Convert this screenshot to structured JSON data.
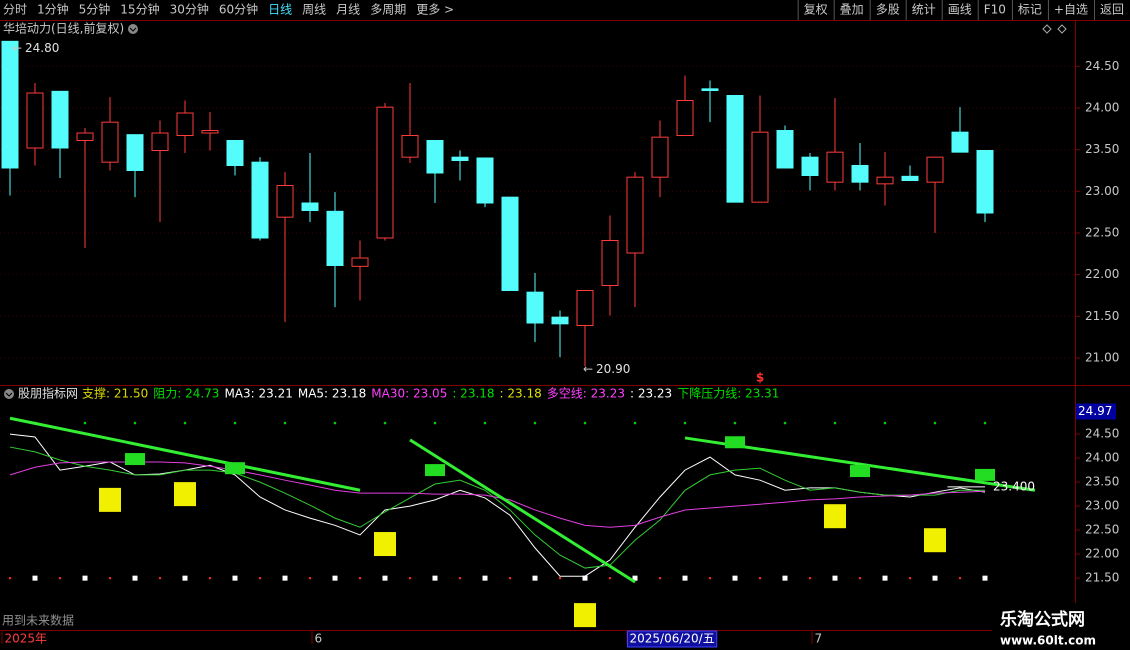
{
  "toolbar": {
    "left": [
      "分时",
      "1分钟",
      "5分钟",
      "15分钟",
      "30分钟",
      "60分钟",
      "日线",
      "周线",
      "月线",
      "多周期",
      "更多 >"
    ],
    "active": "日线",
    "right": [
      "复权",
      "叠加",
      "多股",
      "统计",
      "画线",
      "F10",
      "标记",
      "+自选",
      "返回"
    ]
  },
  "chart_data": [
    {
      "type": "candlestick",
      "title": "华培动力(日线,前复权)",
      "open": [
        24.8,
        23.52,
        24.2,
        23.61,
        23.35,
        23.68,
        23.49,
        23.67,
        23.7,
        23.61,
        23.35,
        22.69,
        22.86,
        22.76,
        22.1,
        22.44,
        23.41,
        23.61,
        23.41,
        23.4,
        22.93,
        21.79,
        21.49,
        21.39,
        21.87,
        22.26,
        23.17,
        23.67,
        24.23,
        24.15,
        22.87,
        23.73,
        23.41,
        23.11,
        23.31,
        23.09,
        23.18,
        23.11,
        23.71,
        23.49
      ],
      "high": [
        24.8,
        24.3,
        24.2,
        23.76,
        24.13,
        23.68,
        23.85,
        24.09,
        23.95,
        23.61,
        23.41,
        23.23,
        23.46,
        22.99,
        22.41,
        24.06,
        24.3,
        23.61,
        23.49,
        23.4,
        22.93,
        22.02,
        21.57,
        21.81,
        22.71,
        23.23,
        23.85,
        24.39,
        24.33,
        24.15,
        24.15,
        23.79,
        23.46,
        24.12,
        23.58,
        23.47,
        23.31,
        23.41,
        24.01,
        23.49
      ],
      "low": [
        22.95,
        23.31,
        23.16,
        22.32,
        23.25,
        22.93,
        22.63,
        23.46,
        23.49,
        23.19,
        22.41,
        21.43,
        22.63,
        21.61,
        21.69,
        22.41,
        23.34,
        22.86,
        23.13,
        22.81,
        21.81,
        21.19,
        21.01,
        20.9,
        21.51,
        21.61,
        22.93,
        23.67,
        23.83,
        22.87,
        22.87,
        23.28,
        23.01,
        23.01,
        23.01,
        22.83,
        23.13,
        22.5,
        23.47,
        22.63
      ],
      "close": [
        23.28,
        24.18,
        23.52,
        23.7,
        23.83,
        23.25,
        23.7,
        23.94,
        23.73,
        23.31,
        22.44,
        23.07,
        22.77,
        22.11,
        22.2,
        24.01,
        23.67,
        23.22,
        23.37,
        22.86,
        21.81,
        21.42,
        21.41,
        21.81,
        22.41,
        23.17,
        23.65,
        24.09,
        24.21,
        22.87,
        23.71,
        23.28,
        23.19,
        23.47,
        23.11,
        23.17,
        23.13,
        23.41,
        23.47,
        22.74
      ],
      "up_color": "#ff3c3c",
      "down_color": "#54fcfc",
      "ylim": [
        20.7,
        24.84
      ],
      "yticks": [
        {
          "value": 21,
          "label": "21.00"
        },
        {
          "value": 21.5,
          "label": "21.50"
        },
        {
          "value": 22,
          "label": "22.00"
        },
        {
          "value": 22.5,
          "label": "22.50"
        },
        {
          "value": 23,
          "label": "23.00"
        },
        {
          "value": 23.5,
          "label": "23.50"
        },
        {
          "value": 24,
          "label": "24.00"
        },
        {
          "value": 24.5,
          "label": "24.50"
        }
      ],
      "grid": true,
      "high_label": {
        "value": 24.8,
        "label": "24.80"
      },
      "low_label": {
        "value": 20.9,
        "label": "20.90"
      },
      "signal": {
        "x": 30,
        "text": "$"
      }
    },
    {
      "type": "indicator",
      "title": "股朋指标网",
      "legend": [
        {
          "text": "支撑: 21.50",
          "color": "#d8d800"
        },
        {
          "text": "阻力: 24.73",
          "color": "#00e000"
        },
        {
          "text": "MA3: 23.21",
          "color": "#ffffff"
        },
        {
          "text": "MA5: 23.18",
          "color": "#ffffff"
        },
        {
          "text": "MA30: 23.05",
          "color": "#ff40ff"
        },
        {
          "text": ": 23.18",
          "color": "#00e000"
        },
        {
          "text": ": 23.18",
          "color": "#e0e000"
        },
        {
          "text": "多空线: 23.23",
          "color": "#ff40ff"
        },
        {
          "text": ": 23.23",
          "color": "#ffffff"
        },
        {
          "text": "下降压力线: 23.31",
          "color": "#00e000"
        }
      ],
      "series": [
        {
          "color": "#ffffff",
          "values": [
            24.5,
            24.44,
            23.75,
            23.83,
            23.92,
            23.65,
            23.67,
            23.75,
            23.85,
            23.65,
            23.19,
            22.92,
            22.75,
            22.6,
            22.4,
            22.92,
            23.0,
            23.13,
            23.33,
            23.17,
            22.81,
            22.13,
            21.54,
            21.54,
            21.88,
            22.56,
            23.19,
            23.75,
            24.02,
            23.65,
            23.54,
            23.33,
            23.38,
            23.38,
            23.29,
            23.23,
            23.19,
            23.29,
            23.38,
            23.29
          ]
        },
        {
          "color": "#33cc33",
          "values": [
            24.23,
            24.13,
            23.96,
            23.83,
            23.75,
            23.65,
            23.65,
            23.75,
            23.75,
            23.69,
            23.5,
            23.27,
            23.02,
            22.75,
            22.56,
            22.88,
            23.17,
            23.46,
            23.54,
            23.33,
            22.92,
            22.4,
            21.98,
            21.71,
            21.77,
            22.29,
            22.71,
            23.33,
            23.65,
            23.75,
            23.79,
            23.54,
            23.33,
            23.38,
            23.29,
            23.23,
            23.23,
            23.23,
            23.33,
            23.33
          ]
        },
        {
          "color": "#e040e0",
          "values": [
            23.65,
            23.81,
            23.9,
            23.92,
            23.92,
            23.92,
            23.92,
            23.9,
            23.83,
            23.75,
            23.65,
            23.54,
            23.44,
            23.33,
            23.27,
            23.27,
            23.27,
            23.25,
            23.25,
            23.23,
            23.13,
            22.92,
            22.75,
            22.6,
            22.56,
            22.6,
            22.77,
            22.92,
            22.96,
            23.0,
            23.04,
            23.08,
            23.13,
            23.15,
            23.19,
            23.21,
            23.23,
            23.27,
            23.29,
            23.31
          ]
        }
      ],
      "support": 21.5,
      "resistance": 24.73,
      "support_colors": [
        "#ff3030",
        "#ffffff"
      ],
      "resistance_color": "#00d000",
      "trend_lines": [
        {
          "x": [
            0,
            14
          ],
          "values": [
            24.83,
            23.33
          ]
        },
        {
          "x": [
            16,
            25
          ],
          "values": [
            24.38,
            21.42
          ]
        },
        {
          "x": [
            27,
            41
          ],
          "values": [
            24.42,
            23.33
          ]
        }
      ],
      "trend_color": "#33ee33",
      "resistance_marks": {
        "x": [
          5,
          9,
          17,
          29,
          34,
          39
        ],
        "values": [
          23.98,
          23.79,
          23.75,
          24.33,
          23.73,
          23.65
        ],
        "color": "#22dd22"
      },
      "support_marks": {
        "x": [
          4,
          7,
          15,
          23,
          33,
          37
        ],
        "values": [
          23.13,
          23.25,
          22.21,
          20.73,
          22.79,
          22.29
        ],
        "color": "#f0f000"
      },
      "ylim": [
        20.42,
        25.21
      ],
      "yticks": [
        {
          "value": 21.5,
          "label": "21.50"
        },
        {
          "value": 22,
          "label": "22.00"
        },
        {
          "value": 22.5,
          "label": "22.50"
        },
        {
          "value": 23,
          "label": "23.00"
        },
        {
          "value": 23.5,
          "label": "23.50"
        },
        {
          "value": 24,
          "label": "24.00"
        },
        {
          "value": 24.5,
          "label": "24.50"
        }
      ],
      "value_box": {
        "value": 24.97,
        "label": "24.97"
      },
      "last_label": {
        "x": [
          37.5,
          39
        ],
        "value": 23.4,
        "label": "23.400"
      }
    }
  ],
  "x_axis": {
    "labels": [
      {
        "x": -0.3,
        "text": "2025年",
        "color": "#ff3c3c"
      },
      {
        "x": 12.1,
        "text": "6",
        "color": "#c8c8c8"
      },
      {
        "x": 24.7,
        "text": "2025/06/20/五",
        "color": "#ffffff",
        "highlight": true
      },
      {
        "x": 32.1,
        "text": "7",
        "color": "#c8c8c8"
      }
    ]
  },
  "footer_note": "用到未来数据",
  "watermark": {
    "title": "乐淘公式网",
    "url": "www.60lt.com"
  }
}
